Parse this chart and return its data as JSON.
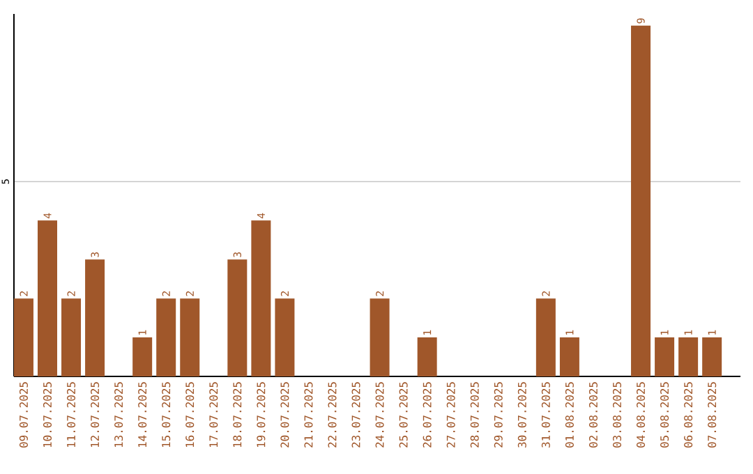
{
  "chart_data": {
    "type": "bar",
    "categories": [
      "09.07.2025",
      "10.07.2025",
      "11.07.2025",
      "12.07.2025",
      "13.07.2025",
      "14.07.2025",
      "15.07.2025",
      "16.07.2025",
      "17.07.2025",
      "18.07.2025",
      "19.07.2025",
      "20.07.2025",
      "21.07.2025",
      "22.07.2025",
      "23.07.2025",
      "24.07.2025",
      "25.07.2025",
      "26.07.2025",
      "27.07.2025",
      "28.07.2025",
      "29.07.2025",
      "30.07.2025",
      "31.07.2025",
      "01.08.2025",
      "02.08.2025",
      "03.08.2025",
      "04.08.2025",
      "05.08.2025",
      "06.08.2025",
      "07.08.2025"
    ],
    "values": [
      2,
      4,
      2,
      3,
      0,
      1,
      2,
      2,
      0,
      3,
      4,
      2,
      0,
      0,
      0,
      2,
      0,
      1,
      0,
      0,
      0,
      0,
      2,
      1,
      0,
      0,
      9,
      1,
      1,
      1
    ],
    "value_labels": [
      "2",
      "4",
      "2",
      "3",
      null,
      "1",
      "2",
      "2",
      null,
      "3",
      "4",
      "2",
      null,
      null,
      null,
      "2",
      null,
      "1",
      null,
      null,
      null,
      null,
      "2",
      "1",
      null,
      null,
      "9",
      "1",
      "1",
      "1"
    ],
    "color": "#a0572a",
    "ylim": [
      0,
      9.3
    ],
    "yticks": [
      5
    ],
    "grid": "y"
  }
}
